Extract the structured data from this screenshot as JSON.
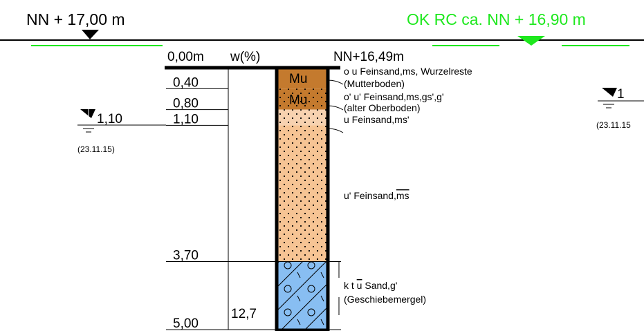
{
  "header": {
    "left_level": "NN + 17,00 m",
    "right_level": "OK RC ca. NN + 16,90 m"
  },
  "column": {
    "top_depth": "0,00m",
    "moisture_header": "w(%)",
    "top_elevation": "NN+16,49m"
  },
  "depths": [
    "0,40",
    "0,80",
    "1,10",
    "3,70",
    "5,00"
  ],
  "moisture_values": [
    "12,7"
  ],
  "layers": [
    {
      "symbol": "Mu",
      "color": "#c47a2e",
      "pattern": "none",
      "description": [
        [
          "o u Feinsand,ms, Wurzelreste"
        ],
        [
          "(Mutterboden)"
        ]
      ]
    },
    {
      "symbol": "Mu",
      "color": "#c47a2e",
      "pattern": "dots",
      "description": [
        [
          "o' u' Feinsand,ms,gs',g'"
        ],
        [
          "(alter Oberboden)"
        ]
      ]
    },
    {
      "color": "#f7d2b0",
      "pattern": "dots",
      "description": [
        [
          "u Feinsand,ms'"
        ]
      ]
    },
    {
      "color": "#f6c494",
      "pattern": "dots",
      "description": [
        [
          "u' Feinsand,",
          {
            "text": "ms",
            "overline": true
          }
        ]
      ]
    },
    {
      "color": "#88bef2",
      "pattern": "hatch",
      "description": [
        [
          "k t ",
          {
            "text": "u",
            "overline": true
          },
          " Sand,g'"
        ],
        [
          "(Geschiebemergel)"
        ]
      ]
    }
  ],
  "groundwater": [
    {
      "depth": "1,10",
      "date": "(23.11.15)"
    },
    {
      "depth": "1",
      "date": "(23.11.15"
    }
  ]
}
